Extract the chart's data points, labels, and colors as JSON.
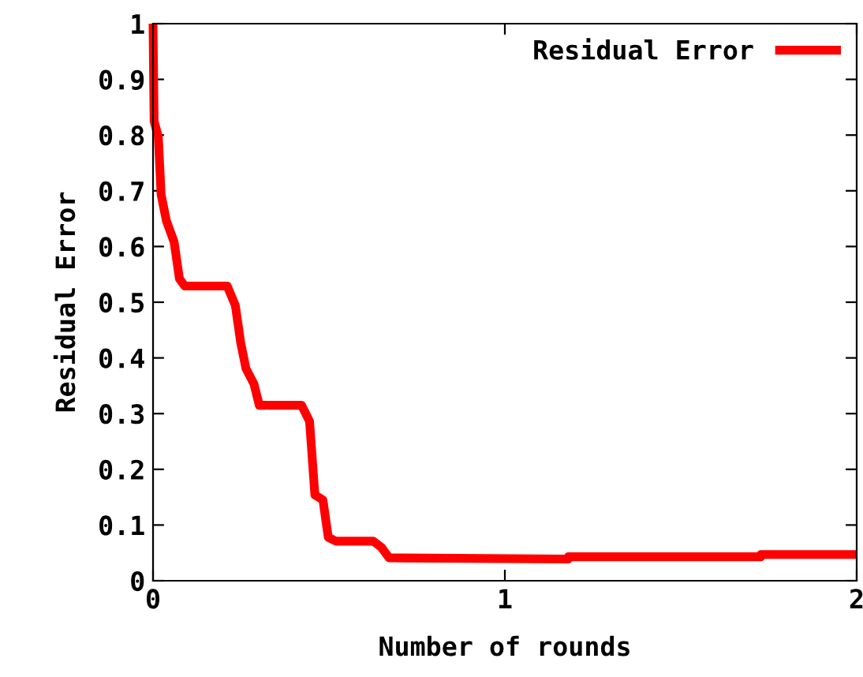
{
  "chart_data": {
    "type": "line",
    "xlabel": "Number of rounds",
    "ylabel": "Residual Error",
    "xlim": [
      0,
      2
    ],
    "xticks": [
      0,
      1,
      2
    ],
    "ylim": [
      0,
      1
    ],
    "yticks": [
      0,
      0.1,
      0.2,
      0.3,
      0.4,
      0.5,
      0.6,
      0.7,
      0.8,
      0.9,
      1
    ],
    "grid": false,
    "legend": "top right",
    "line_style": "solid",
    "marker": "none",
    "series": [
      {
        "name": "Residual Error",
        "color": "#ff0000",
        "x": [
          0,
          0.003,
          0.015,
          0.023,
          0.038,
          0.06,
          0.075,
          0.09,
          0.211,
          0.234,
          0.249,
          0.264,
          0.287,
          0.302,
          0.422,
          0.445,
          0.46,
          0.483,
          0.498,
          0.52,
          0.626,
          0.649,
          0.671,
          1.18,
          1.181,
          1.727,
          1.728,
          2
        ],
        "values": [
          1.0,
          0.825,
          0.797,
          0.693,
          0.646,
          0.608,
          0.542,
          0.529,
          0.529,
          0.494,
          0.428,
          0.381,
          0.353,
          0.315,
          0.315,
          0.286,
          0.154,
          0.145,
          0.078,
          0.071,
          0.071,
          0.06,
          0.041,
          0.039,
          0.043,
          0.043,
          0.047,
          0.047
        ]
      }
    ]
  }
}
